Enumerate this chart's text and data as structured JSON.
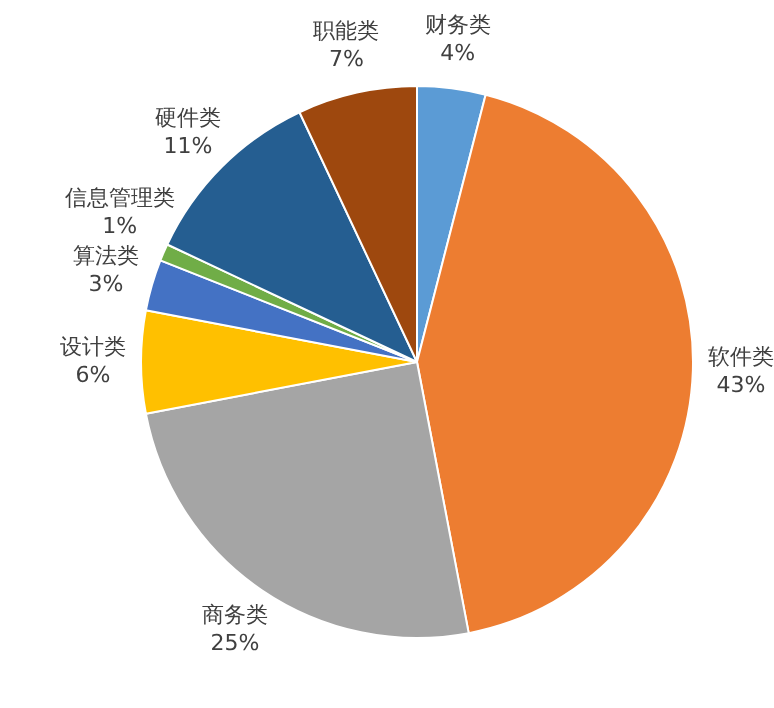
{
  "chart_data": {
    "type": "pie",
    "categories": [
      "财务类",
      "软件类",
      "商务类",
      "设计类",
      "算法类",
      "信息管理类",
      "硬件类",
      "职能类"
    ],
    "values": [
      4,
      43,
      25,
      6,
      3,
      1,
      11,
      7
    ],
    "value_labels": [
      "4%",
      "43%",
      "25%",
      "6%",
      "3%",
      "1%",
      "11%",
      "7%"
    ],
    "colors": [
      "#5b9bd5",
      "#ed7d31",
      "#a5a5a5",
      "#ffc000",
      "#4472c4",
      "#70ad47",
      "#255e91",
      "#9e480e"
    ],
    "legend": false
  }
}
